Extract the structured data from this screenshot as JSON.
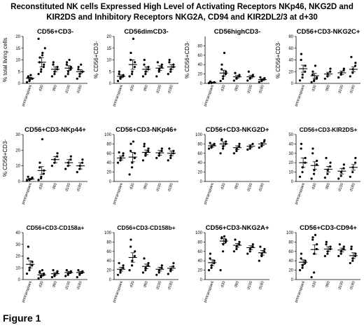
{
  "figure": {
    "title_lines": [
      "Reconstituted NK cells Expressed High Level of Activating Receptors NKp46, NKG2D and",
      "KIR2DS and Inhibitory Receptors NKG2A, CD94 and KIR2DL2/3 at d+30"
    ],
    "label": "Figure 1"
  },
  "chart_data": [
    {
      "type": "scatter",
      "title": "CD56+CD3-",
      "ylabel": "% total living cells",
      "ylim": [
        0,
        20
      ],
      "yticks": [
        0,
        5,
        10,
        15,
        20
      ],
      "categories": [
        "pretransplant",
        "d30",
        "d60",
        "d100",
        "d180"
      ],
      "means": [
        2.2,
        9,
        6,
        6.5,
        5
      ],
      "sem": [
        0.4,
        2,
        1,
        1,
        0.8
      ],
      "points": [
        [
          0.5,
          1,
          1.5,
          2,
          2,
          2.5,
          3,
          3.5
        ],
        [
          4,
          5,
          6,
          7,
          8,
          9,
          11,
          12,
          13,
          15,
          19
        ],
        [
          3,
          4,
          5,
          6,
          7,
          8,
          9
        ],
        [
          3,
          4,
          5,
          6,
          7,
          8,
          9,
          10
        ],
        [
          2,
          3,
          4,
          5,
          5,
          6,
          7,
          8
        ]
      ]
    },
    {
      "type": "scatter",
      "title": "CD56dimCD3-",
      "ylabel": "% CD56+CD3-",
      "ylim": [
        0,
        20
      ],
      "yticks": [
        0,
        5,
        10,
        15,
        20
      ],
      "categories": [
        "pretransplant",
        "d30",
        "d60",
        "d100",
        "d180"
      ],
      "means": [
        3,
        8,
        6,
        6.5,
        7
      ],
      "sem": [
        0.6,
        2,
        1,
        1,
        1
      ],
      "points": [
        [
          1,
          2,
          2.5,
          3,
          3.5,
          4,
          5
        ],
        [
          3,
          4,
          5,
          7,
          9,
          10,
          13,
          19
        ],
        [
          3,
          4,
          5,
          6,
          7,
          8,
          10
        ],
        [
          3,
          5,
          6,
          7,
          8,
          9
        ],
        [
          4,
          5,
          6,
          7,
          8,
          9,
          10
        ]
      ]
    },
    {
      "type": "scatter",
      "title": "CD56highCD3-",
      "ylabel": "% CD56+CD3-",
      "ylim": [
        0,
        100
      ],
      "yticks": [
        0,
        20,
        40,
        60,
        80
      ],
      "categories": [
        "pretransplant",
        "d30",
        "d60",
        "d100",
        "d180"
      ],
      "means": [
        2,
        22,
        14,
        14,
        8
      ],
      "sem": [
        0.5,
        6,
        3,
        3,
        2
      ],
      "points": [
        [
          0.5,
          1,
          1.5,
          2,
          2.5,
          3,
          4
        ],
        [
          5,
          10,
          15,
          20,
          25,
          30,
          40,
          65
        ],
        [
          6,
          10,
          12,
          15,
          18,
          22
        ],
        [
          6,
          10,
          12,
          15,
          18,
          25
        ],
        [
          3,
          5,
          7,
          9,
          11,
          13
        ]
      ]
    },
    {
      "type": "scatter",
      "title": "CD56+CD3-NKG2C+",
      "ylabel": "% CD56+CD3-",
      "ylim": [
        0,
        80
      ],
      "yticks": [
        0,
        20,
        40,
        60,
        80
      ],
      "categories": [
        "pretransplant",
        "d30",
        "d60",
        "d100",
        "d180"
      ],
      "means": [
        25,
        13,
        16,
        18,
        24
      ],
      "sem": [
        6,
        4,
        3,
        3,
        4
      ],
      "points": [
        [
          5,
          10,
          15,
          20,
          30,
          40,
          50
        ],
        [
          2,
          4,
          6,
          8,
          10,
          15,
          20,
          30
        ],
        [
          8,
          12,
          16,
          20,
          25
        ],
        [
          10,
          15,
          18,
          22,
          25
        ],
        [
          12,
          18,
          24,
          30,
          35,
          45
        ]
      ]
    },
    {
      "type": "scatter",
      "title": "CD56+CD3-NKp44+",
      "ylabel": "% CD56+CD3-",
      "ylim": [
        0,
        30
      ],
      "yticks": [
        0,
        10,
        20,
        30
      ],
      "categories": [
        "pretransplant",
        "d30",
        "d60",
        "d100",
        "d180"
      ],
      "means": [
        1.5,
        7,
        14,
        12,
        10
      ],
      "sem": [
        0.4,
        2.5,
        2,
        2,
        2
      ],
      "points": [
        [
          0.5,
          1,
          1.5,
          2,
          2.5,
          3
        ],
        [
          1,
          2,
          3,
          5,
          7,
          9,
          12,
          27
        ],
        [
          10,
          12,
          14,
          16,
          18
        ],
        [
          8,
          10,
          12,
          14,
          16
        ],
        [
          6,
          8,
          10,
          12,
          14
        ]
      ]
    },
    {
      "type": "scatter",
      "title": "CD56+CD3-NKp46+",
      "ylabel": "",
      "ylim": [
        0,
        100
      ],
      "yticks": [
        0,
        20,
        40,
        60,
        80,
        100
      ],
      "categories": [
        "pretransplant",
        "d30",
        "d60",
        "d100",
        "d180"
      ],
      "means": [
        50,
        52,
        62,
        61,
        60
      ],
      "sem": [
        4,
        10,
        5,
        5,
        5
      ],
      "points": [
        [
          40,
          45,
          50,
          55,
          60,
          62
        ],
        [
          15,
          30,
          40,
          50,
          60,
          65,
          80,
          85
        ],
        [
          45,
          55,
          60,
          65,
          70,
          75,
          80
        ],
        [
          50,
          55,
          60,
          65,
          70
        ],
        [
          45,
          50,
          55,
          60,
          65,
          70
        ]
      ]
    },
    {
      "type": "scatter",
      "title": "CD56+CD3-NKG2D+",
      "ylabel": "",
      "ylim": [
        0,
        100
      ],
      "yticks": [
        0,
        20,
        40,
        60,
        80,
        100
      ],
      "categories": [
        "pretransplant",
        "d30",
        "d60",
        "d100",
        "d180"
      ],
      "means": [
        76,
        80,
        72,
        75,
        80
      ],
      "sem": [
        3,
        4,
        4,
        3,
        3
      ],
      "points": [
        [
          70,
          72,
          75,
          78,
          80,
          82
        ],
        [
          60,
          70,
          75,
          80,
          85,
          88,
          90
        ],
        [
          60,
          65,
          70,
          75,
          80
        ],
        [
          68,
          70,
          75,
          80
        ],
        [
          72,
          75,
          80,
          85,
          88
        ]
      ]
    },
    {
      "type": "scatter",
      "title": "CD56+CD3-KIR2DS+",
      "ylabel": "",
      "ylim": [
        0,
        50
      ],
      "yticks": [
        0,
        10,
        20,
        30,
        40,
        50
      ],
      "categories": [
        "pretransplant",
        "d30",
        "d60",
        "d100",
        "d180"
      ],
      "means": [
        20,
        17,
        13,
        11,
        15
      ],
      "sem": [
        5,
        4,
        3,
        3,
        3
      ],
      "points": [
        [
          5,
          10,
          15,
          20,
          25,
          35,
          40
        ],
        [
          3,
          8,
          12,
          18,
          22,
          30,
          35
        ],
        [
          4,
          8,
          12,
          16,
          20,
          25
        ],
        [
          3,
          6,
          10,
          14,
          18
        ],
        [
          5,
          10,
          15,
          20,
          25
        ]
      ]
    },
    {
      "type": "scatter",
      "title": "CD56+CD3-CD158a+",
      "ylabel": "",
      "ylim": [
        0,
        40
      ],
      "yticks": [
        0,
        10,
        20,
        30,
        40
      ],
      "categories": [
        "pretransplant",
        "d30",
        "d60",
        "d100",
        "d180"
      ],
      "means": [
        13,
        4,
        5,
        6,
        6
      ],
      "sem": [
        3,
        1,
        1,
        1,
        1
      ],
      "points": [
        [
          5,
          8,
          10,
          12,
          15,
          18,
          28
        ],
        [
          1,
          2,
          3,
          4,
          5,
          6,
          7,
          8
        ],
        [
          2,
          3,
          4,
          6,
          7,
          8
        ],
        [
          3,
          4,
          5,
          6,
          7,
          8
        ],
        [
          2,
          4,
          5,
          6,
          7,
          8
        ]
      ]
    },
    {
      "type": "scatter",
      "title": "CD56+CD3-CD158b+",
      "ylabel": "",
      "ylim": [
        0,
        100
      ],
      "yticks": [
        0,
        20,
        40,
        60,
        80,
        100
      ],
      "categories": [
        "pretransplant",
        "d30",
        "d60",
        "d100",
        "d180"
      ],
      "means": [
        22,
        47,
        28,
        22,
        24
      ],
      "sem": [
        4,
        10,
        5,
        4,
        4
      ],
      "points": [
        [
          10,
          15,
          20,
          25,
          30,
          35
        ],
        [
          20,
          30,
          40,
          50,
          60,
          70,
          85
        ],
        [
          15,
          20,
          25,
          30,
          35,
          45
        ],
        [
          10,
          15,
          20,
          25,
          30
        ],
        [
          12,
          18,
          22,
          28,
          35
        ]
      ]
    },
    {
      "type": "scatter",
      "title": "CD56+CD3-NKG2A+",
      "ylabel": "",
      "ylim": [
        0,
        100
      ],
      "yticks": [
        0,
        20,
        40,
        60,
        80,
        100
      ],
      "categories": [
        "pretransplant",
        "d30",
        "d60",
        "d100",
        "d180"
      ],
      "means": [
        36,
        82,
        73,
        68,
        57
      ],
      "sem": [
        6,
        5,
        4,
        4,
        5
      ],
      "points": [
        [
          20,
          25,
          30,
          35,
          40,
          45,
          55
        ],
        [
          20,
          60,
          75,
          80,
          85,
          88,
          90,
          92
        ],
        [
          60,
          65,
          70,
          75,
          80,
          85
        ],
        [
          55,
          60,
          65,
          70,
          75
        ],
        [
          40,
          50,
          55,
          60,
          65,
          70
        ]
      ]
    },
    {
      "type": "scatter",
      "title": "CD56+CD3-CD94+",
      "ylabel": "",
      "ylim": [
        0,
        100
      ],
      "yticks": [
        0,
        20,
        40,
        60,
        80,
        100
      ],
      "categories": [
        "pretransplant",
        "d30",
        "d60",
        "d100",
        "d180"
      ],
      "means": [
        37,
        64,
        65,
        63,
        51
      ],
      "sem": [
        5,
        10,
        5,
        4,
        6
      ],
      "points": [
        [
          20,
          25,
          30,
          35,
          40,
          45,
          55
        ],
        [
          5,
          15,
          55,
          65,
          75,
          85,
          90,
          95
        ],
        [
          50,
          55,
          60,
          65,
          70,
          75,
          80
        ],
        [
          50,
          55,
          60,
          65,
          70,
          75
        ],
        [
          35,
          40,
          45,
          50,
          55,
          65,
          70
        ]
      ]
    }
  ]
}
